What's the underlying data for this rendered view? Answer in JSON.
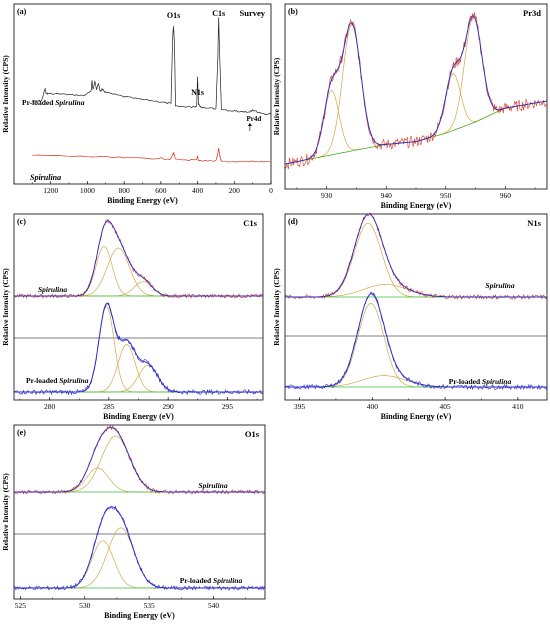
{
  "axis_labels": {
    "x": "Binding Energy (eV)",
    "y": "Relative Intensity (CPS)"
  },
  "colors": {
    "raw": "#d43a1e",
    "envelope": "#2b2bcc",
    "component": "#d4a84a",
    "background": "#3bbf3b",
    "axis": "#000000"
  },
  "chart_data": [
    {
      "panel": "(a)",
      "title": "Survey",
      "type": "line",
      "xlim": [
        1400,
        0
      ],
      "xticks": [
        "1200",
        "1000",
        "800",
        "600",
        "400",
        "200",
        "0"
      ],
      "xlabel": "Binding Energy (eV)",
      "ylabel": "Relative Intensity (CPS)",
      "series": [
        {
          "name": "Pr-loaded Spirulina",
          "name_plain": "Pr-loaded ",
          "name_italic": "Spirulina"
        },
        {
          "name": "Spirulina",
          "name_plain": "",
          "name_italic": "Spirulina"
        }
      ],
      "peak_labels": [
        {
          "text": "O1s",
          "x": 531
        },
        {
          "text": "N1s",
          "x": 400
        },
        {
          "text": "C1s",
          "x": 285
        },
        {
          "text": "Pr4d",
          "x": 115
        }
      ],
      "upper_trace_x": [
        1300,
        1250,
        1230,
        1225,
        1200,
        1100,
        1020,
        980,
        975,
        970,
        960,
        950,
        940,
        930,
        920,
        900,
        800,
        700,
        600,
        545,
        535,
        531,
        526,
        520,
        450,
        405,
        400,
        395,
        380,
        300,
        290,
        285,
        280,
        270,
        200,
        150,
        115,
        100,
        50,
        0
      ],
      "upper_trace_y_pct": [
        14,
        15,
        27,
        22,
        22,
        21,
        20,
        24,
        35,
        26,
        34,
        26,
        32,
        24,
        26,
        23,
        19,
        16,
        14,
        12,
        80,
        88,
        72,
        10,
        9,
        9,
        38,
        12,
        8,
        7,
        55,
        97,
        62,
        6,
        5,
        4,
        4,
        6,
        2,
        2
      ],
      "lower_trace_x": [
        1300,
        1000,
        800,
        600,
        545,
        531,
        520,
        405,
        400,
        395,
        300,
        290,
        285,
        280,
        270,
        100,
        0
      ],
      "lower_trace_y_pct": [
        11,
        9,
        7,
        6,
        5,
        16,
        4,
        3,
        10,
        2,
        2,
        14,
        23,
        12,
        1,
        1,
        0
      ]
    },
    {
      "panel": "(b)",
      "title": "Pr3d",
      "type": "line",
      "xlim": [
        923,
        967
      ],
      "xticks": [
        "930",
        "940",
        "950",
        "960"
      ],
      "xlabel": "Binding Energy (eV)",
      "ylabel": "Relative Intensity (CPS)",
      "components": [
        {
          "center": 930.8,
          "height_pct": 50,
          "fwhm": 3.0
        },
        {
          "center": 934.2,
          "height_pct": 98,
          "fwhm": 3.6
        },
        {
          "center": 951.2,
          "height_pct": 44,
          "fwhm": 3.0
        },
        {
          "center": 954.6,
          "height_pct": 82,
          "fwhm": 3.4
        }
      ],
      "background_x": [
        923,
        935,
        940,
        945,
        950,
        955,
        960,
        967
      ],
      "background_y_pct": [
        0,
        10,
        14,
        16,
        22,
        30,
        40,
        45
      ]
    },
    {
      "panel": "(c)",
      "title": "C1s",
      "type": "line",
      "xlim": [
        277,
        298
      ],
      "xticks": [
        "280",
        "285",
        "290",
        "295"
      ],
      "xlabel": "Binding Energy (eV)",
      "ylabel": "Relative Intensity (CPS)",
      "series": [
        {
          "name": "Spirulina",
          "name_plain": "",
          "name_italic": "Spirulina",
          "components": [
            {
              "center": 284.6,
              "height_pct": 62,
              "fwhm": 1.6
            },
            {
              "center": 285.8,
              "height_pct": 60,
              "fwhm": 2.2
            },
            {
              "center": 287.9,
              "height_pct": 18,
              "fwhm": 1.8
            }
          ]
        },
        {
          "name": "Pr-loaded Spirulina",
          "name_plain": "Pr-loaded ",
          "name_italic": "Spirulina",
          "components": [
            {
              "center": 284.8,
              "height_pct": 90,
              "fwhm": 1.5
            },
            {
              "center": 286.5,
              "height_pct": 50,
              "fwhm": 1.7
            },
            {
              "center": 288.3,
              "height_pct": 28,
              "fwhm": 1.9
            }
          ]
        }
      ]
    },
    {
      "panel": "(d)",
      "title": "N1s",
      "type": "line",
      "xlim": [
        394,
        412
      ],
      "xticks": [
        "395",
        "400",
        "405",
        "410"
      ],
      "xlabel": "Binding Energy (eV)",
      "ylabel": "Relative Intensity (CPS)",
      "series": [
        {
          "name": "Spirulina",
          "name_plain": "",
          "name_italic": "Spirulina",
          "components": [
            {
              "center": 399.7,
              "height_pct": 82,
              "fwhm": 2.2
            },
            {
              "center": 400.9,
              "height_pct": 14,
              "fwhm": 3.5
            }
          ]
        },
        {
          "name": "Pr-loaded Spirulina",
          "name_plain": "Pr-loaded ",
          "name_italic": "Spirulina",
          "components": [
            {
              "center": 399.9,
              "height_pct": 88,
              "fwhm": 2.1
            },
            {
              "center": 400.8,
              "height_pct": 12,
              "fwhm": 3.5
            }
          ]
        }
      ]
    },
    {
      "panel": "(e)",
      "title": "O1s",
      "type": "line",
      "xlim": [
        524.5,
        544
      ],
      "xticks": [
        "525",
        "530",
        "535",
        "540"
      ],
      "xlabel": "Binding Energy (eV)",
      "ylabel": "Relative Intensity (CPS)",
      "series": [
        {
          "name": "Spirulina",
          "name_plain": "",
          "name_italic": "Spirulina",
          "components": [
            {
              "center": 531.0,
              "height_pct": 30,
              "fwhm": 2.0
            },
            {
              "center": 532.4,
              "height_pct": 70,
              "fwhm": 2.6
            }
          ]
        },
        {
          "name": "Pr-loaded Spirulina",
          "name_plain": "Pr-loaded ",
          "name_italic": "Spirulina",
          "components": [
            {
              "center": 531.4,
              "height_pct": 55,
              "fwhm": 2.0
            },
            {
              "center": 532.8,
              "height_pct": 70,
              "fwhm": 2.4
            }
          ]
        }
      ]
    }
  ]
}
